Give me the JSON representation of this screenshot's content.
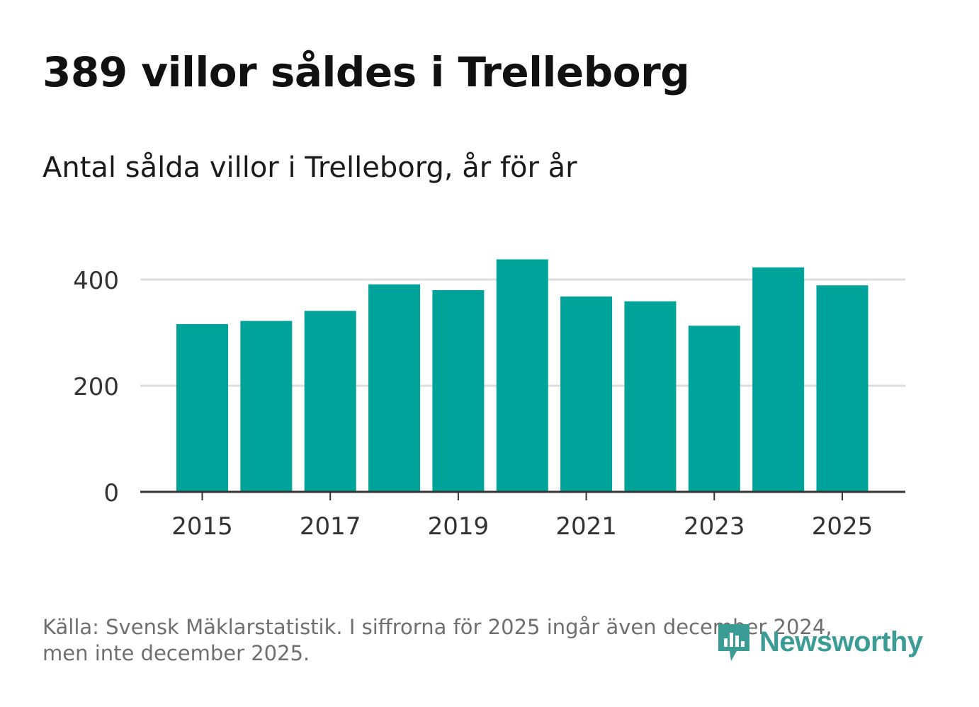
{
  "title": "389 villor såldes i Trelleborg",
  "subtitle": "Antal sålda villor i Trelleborg, år för år",
  "source_line1": "Källa: Svensk Mäklarstatistik. I siffrorna för 2025 ingår även december 2024,",
  "source_line2": "men inte december 2025.",
  "brand": {
    "name": "Newsworthy",
    "icon": "newsworthy-logo-icon",
    "color": "#3a9c95"
  },
  "colors": {
    "bar": "#00a39a",
    "grid": "#dddddd",
    "axis": "#333333",
    "text": "#333333"
  },
  "chart_data": {
    "type": "bar",
    "title": "Antal sålda villor i Trelleborg, år för år",
    "xlabel": "",
    "ylabel": "",
    "categories": [
      "2015",
      "2016",
      "2017",
      "2018",
      "2019",
      "2020",
      "2021",
      "2022",
      "2023",
      "2024",
      "2025"
    ],
    "values": [
      316,
      322,
      341,
      391,
      380,
      438,
      368,
      359,
      313,
      423,
      389
    ],
    "ylim": [
      0,
      400
    ],
    "yticks": [
      0,
      200,
      400
    ],
    "xticks": [
      "2015",
      "2017",
      "2019",
      "2021",
      "2023",
      "2025"
    ],
    "grid": true,
    "legend": "none"
  }
}
